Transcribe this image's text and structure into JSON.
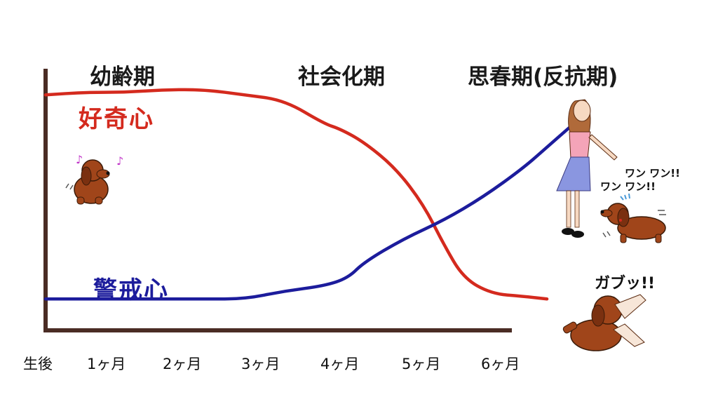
{
  "chart_data": {
    "type": "line",
    "phases": [
      "幼齢期",
      "社会化期",
      "思春期(反抗期)"
    ],
    "categories": [
      "生後",
      "1ヶ月",
      "2ヶ月",
      "3ヶ月",
      "4ヶ月",
      "5ヶ月",
      "6ヶ月"
    ],
    "series": [
      {
        "name": "好奇心",
        "color": "#d42a1e",
        "points": [
          [
            0,
            0.9
          ],
          [
            0.5,
            0.91
          ],
          [
            1,
            0.91
          ],
          [
            1.5,
            0.92
          ],
          [
            2,
            0.92
          ],
          [
            2.5,
            0.9
          ],
          [
            3,
            0.88
          ],
          [
            3.5,
            0.79
          ],
          [
            3.7,
            0.77
          ],
          [
            4,
            0.72
          ],
          [
            4.4,
            0.62
          ],
          [
            4.75,
            0.48
          ],
          [
            5,
            0.33
          ],
          [
            5.25,
            0.2
          ],
          [
            5.6,
            0.14
          ],
          [
            6,
            0.13
          ],
          [
            6.3,
            0.12
          ]
        ]
      },
      {
        "name": "警戒心",
        "color": "#1c1c9c",
        "points": [
          [
            0,
            0.12
          ],
          [
            1,
            0.12
          ],
          [
            2,
            0.12
          ],
          [
            2.5,
            0.12
          ],
          [
            3,
            0.15
          ],
          [
            3.5,
            0.17
          ],
          [
            3.8,
            0.2
          ],
          [
            4,
            0.26
          ],
          [
            4.5,
            0.35
          ],
          [
            5,
            0.42
          ],
          [
            5.5,
            0.51
          ],
          [
            6,
            0.62
          ],
          [
            6.3,
            0.7
          ],
          [
            6.6,
            0.78
          ]
        ]
      }
    ],
    "ylim": [
      0,
      1
    ],
    "grid": false,
    "legend": "inline"
  },
  "illustrations": {
    "bark_text_1": "ワン ワン!!",
    "bark_text_2": "ワン ワン!!",
    "bite_text": "ガブッ!!"
  }
}
